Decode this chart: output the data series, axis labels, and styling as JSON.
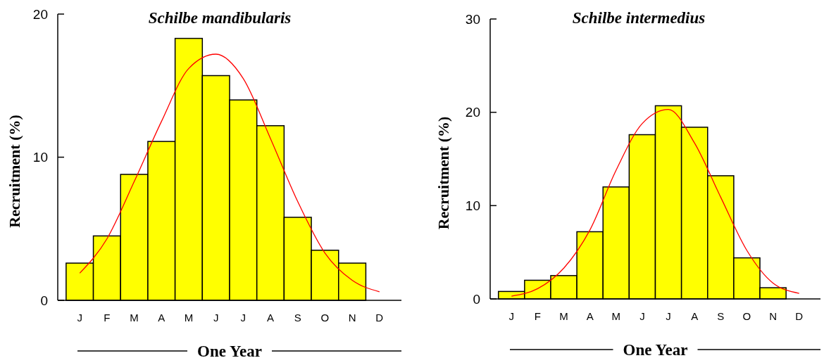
{
  "chart_data": [
    {
      "type": "bar",
      "title": "Schilbe mandibularis",
      "xlabel": "One Year",
      "ylabel": "Recruitment (%)",
      "categories": [
        "J",
        "F",
        "M",
        "A",
        "M",
        "J",
        "J",
        "A",
        "S",
        "O",
        "N",
        "D"
      ],
      "ylim": [
        0,
        20
      ],
      "yticks": [
        0,
        10,
        20
      ],
      "series": [
        {
          "color": "#ffff00",
          "values": [
            2.6,
            4.5,
            8.8,
            11.1,
            18.3,
            15.7,
            14.0,
            12.2,
            5.8,
            3.5,
            2.6,
            null
          ]
        },
        {
          "type": "line",
          "color": "#ff0000",
          "values": [
            1.9,
            4.3,
            8.3,
            12.5,
            16.2,
            17.2,
            15.5,
            11.3,
            6.9,
            3.3,
            1.4,
            0.6
          ]
        }
      ]
    },
    {
      "type": "bar",
      "title": "Schilbe intermedius",
      "xlabel": "One Year",
      "ylabel": "Recruitment (%)",
      "categories": [
        "J",
        "F",
        "M",
        "A",
        "M",
        "J",
        "J",
        "A",
        "S",
        "O",
        "N",
        "D"
      ],
      "ylim": [
        0,
        30
      ],
      "yticks": [
        0,
        10,
        20,
        30
      ],
      "series": [
        {
          "color": "#ffff00",
          "values": [
            0.8,
            2.0,
            2.5,
            7.2,
            12.0,
            17.6,
            20.7,
            18.4,
            13.2,
            4.4,
            1.2,
            null
          ]
        },
        {
          "type": "line",
          "color": "#ff0000",
          "values": [
            0.3,
            1.1,
            3.3,
            7.4,
            13.8,
            18.8,
            20.3,
            16.7,
            10.9,
            5.2,
            1.7,
            0.6
          ]
        }
      ]
    }
  ]
}
